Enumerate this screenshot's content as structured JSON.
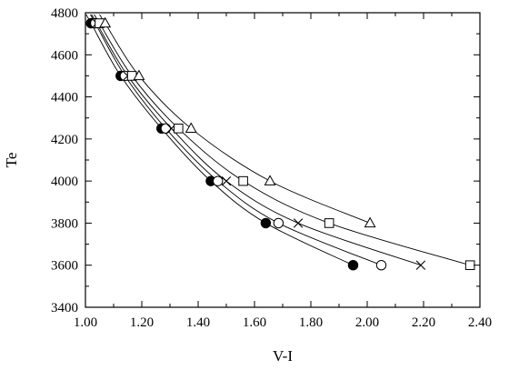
{
  "chart_data": {
    "type": "scatter",
    "title": "",
    "xlabel": "V-I",
    "ylabel": "Te",
    "xlim": [
      1.0,
      2.4
    ],
    "ylim": [
      3400,
      4800
    ],
    "xticks": [
      "1.00",
      "1.20",
      "1.40",
      "1.60",
      "1.80",
      "2.00",
      "2.20",
      "2.40"
    ],
    "yticks": [
      "3400",
      "3600",
      "3800",
      "4000",
      "4200",
      "4400",
      "4600",
      "4800"
    ],
    "grid": false,
    "legend": "none",
    "series": [
      {
        "marker": "filled-circle",
        "points": [
          {
            "x": 1.02,
            "y": 4750
          },
          {
            "x": 1.125,
            "y": 4500
          },
          {
            "x": 1.27,
            "y": 4250
          },
          {
            "x": 1.445,
            "y": 4000
          },
          {
            "x": 1.64,
            "y": 3800
          },
          {
            "x": 1.95,
            "y": 3600
          }
        ]
      },
      {
        "marker": "open-circle",
        "points": [
          {
            "x": 1.035,
            "y": 4750
          },
          {
            "x": 1.14,
            "y": 4500
          },
          {
            "x": 1.285,
            "y": 4250
          },
          {
            "x": 1.47,
            "y": 4000
          },
          {
            "x": 1.685,
            "y": 3800
          },
          {
            "x": 2.05,
            "y": 3600
          }
        ]
      },
      {
        "marker": "cross",
        "points": [
          {
            "x": 1.04,
            "y": 4750
          },
          {
            "x": 1.15,
            "y": 4500
          },
          {
            "x": 1.305,
            "y": 4250
          },
          {
            "x": 1.5,
            "y": 4000
          },
          {
            "x": 1.755,
            "y": 3800
          },
          {
            "x": 2.19,
            "y": 3600
          }
        ]
      },
      {
        "marker": "open-square",
        "points": [
          {
            "x": 1.05,
            "y": 4750
          },
          {
            "x": 1.165,
            "y": 4500
          },
          {
            "x": 1.33,
            "y": 4250
          },
          {
            "x": 1.56,
            "y": 4000
          },
          {
            "x": 1.865,
            "y": 3800
          },
          {
            "x": 2.365,
            "y": 3600
          }
        ]
      },
      {
        "marker": "open-triangle",
        "points": [
          {
            "x": 1.07,
            "y": 4750
          },
          {
            "x": 1.19,
            "y": 4500
          },
          {
            "x": 1.375,
            "y": 4250
          },
          {
            "x": 1.655,
            "y": 4000
          },
          {
            "x": 2.01,
            "y": 3800
          }
        ]
      }
    ]
  }
}
